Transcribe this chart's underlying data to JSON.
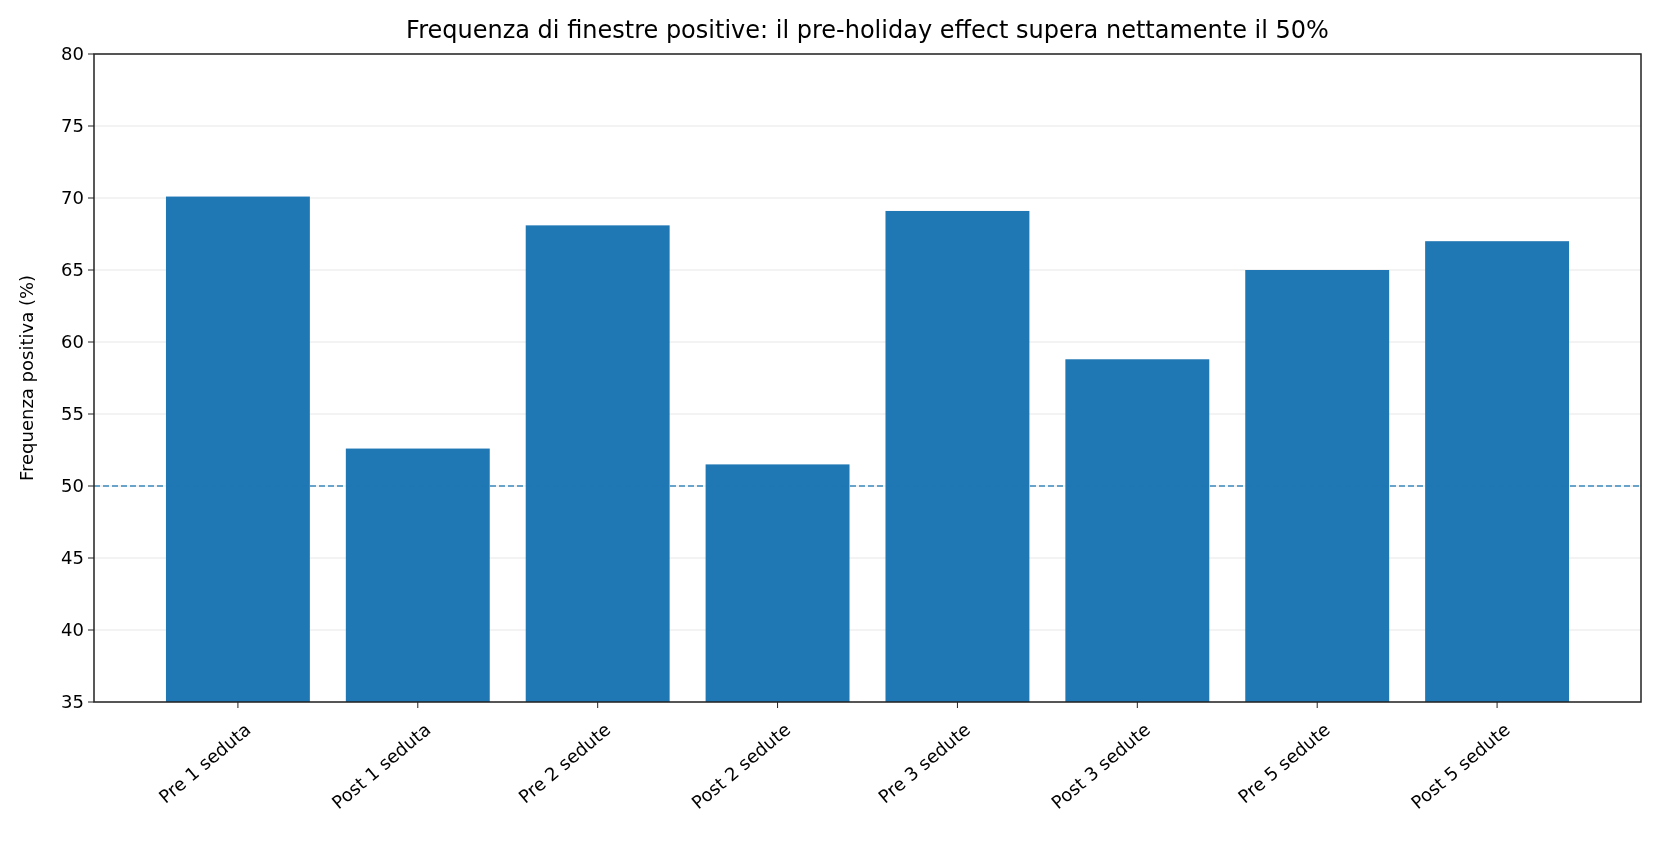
{
  "chart_data": {
    "type": "bar",
    "title": "Frequenza di finestre positive: il pre-holiday effect supera nettamente il 50%",
    "ylabel": "Frequenza positiva (%)",
    "categories": [
      "Pre 1 seduta",
      "Post 1 seduta",
      "Pre 2 sedute",
      "Post 2 sedute",
      "Pre 3 sedute",
      "Post 3 sedute",
      "Pre 5 sedute",
      "Post 5 sedute"
    ],
    "series": [
      {
        "color": "#1f77b4",
        "values": [
          70.1,
          52.6,
          68.1,
          51.5,
          69.1,
          58.8,
          65.0,
          67.0
        ]
      }
    ],
    "ylim": [
      35,
      80
    ],
    "yticks": [
      35,
      40,
      45,
      50,
      55,
      60,
      65,
      70,
      75,
      80
    ],
    "grid": "y",
    "ref_lines": [
      {
        "axis": "y",
        "value": 50,
        "color": "#1f77b4",
        "line_style": "dashed"
      }
    ]
  }
}
